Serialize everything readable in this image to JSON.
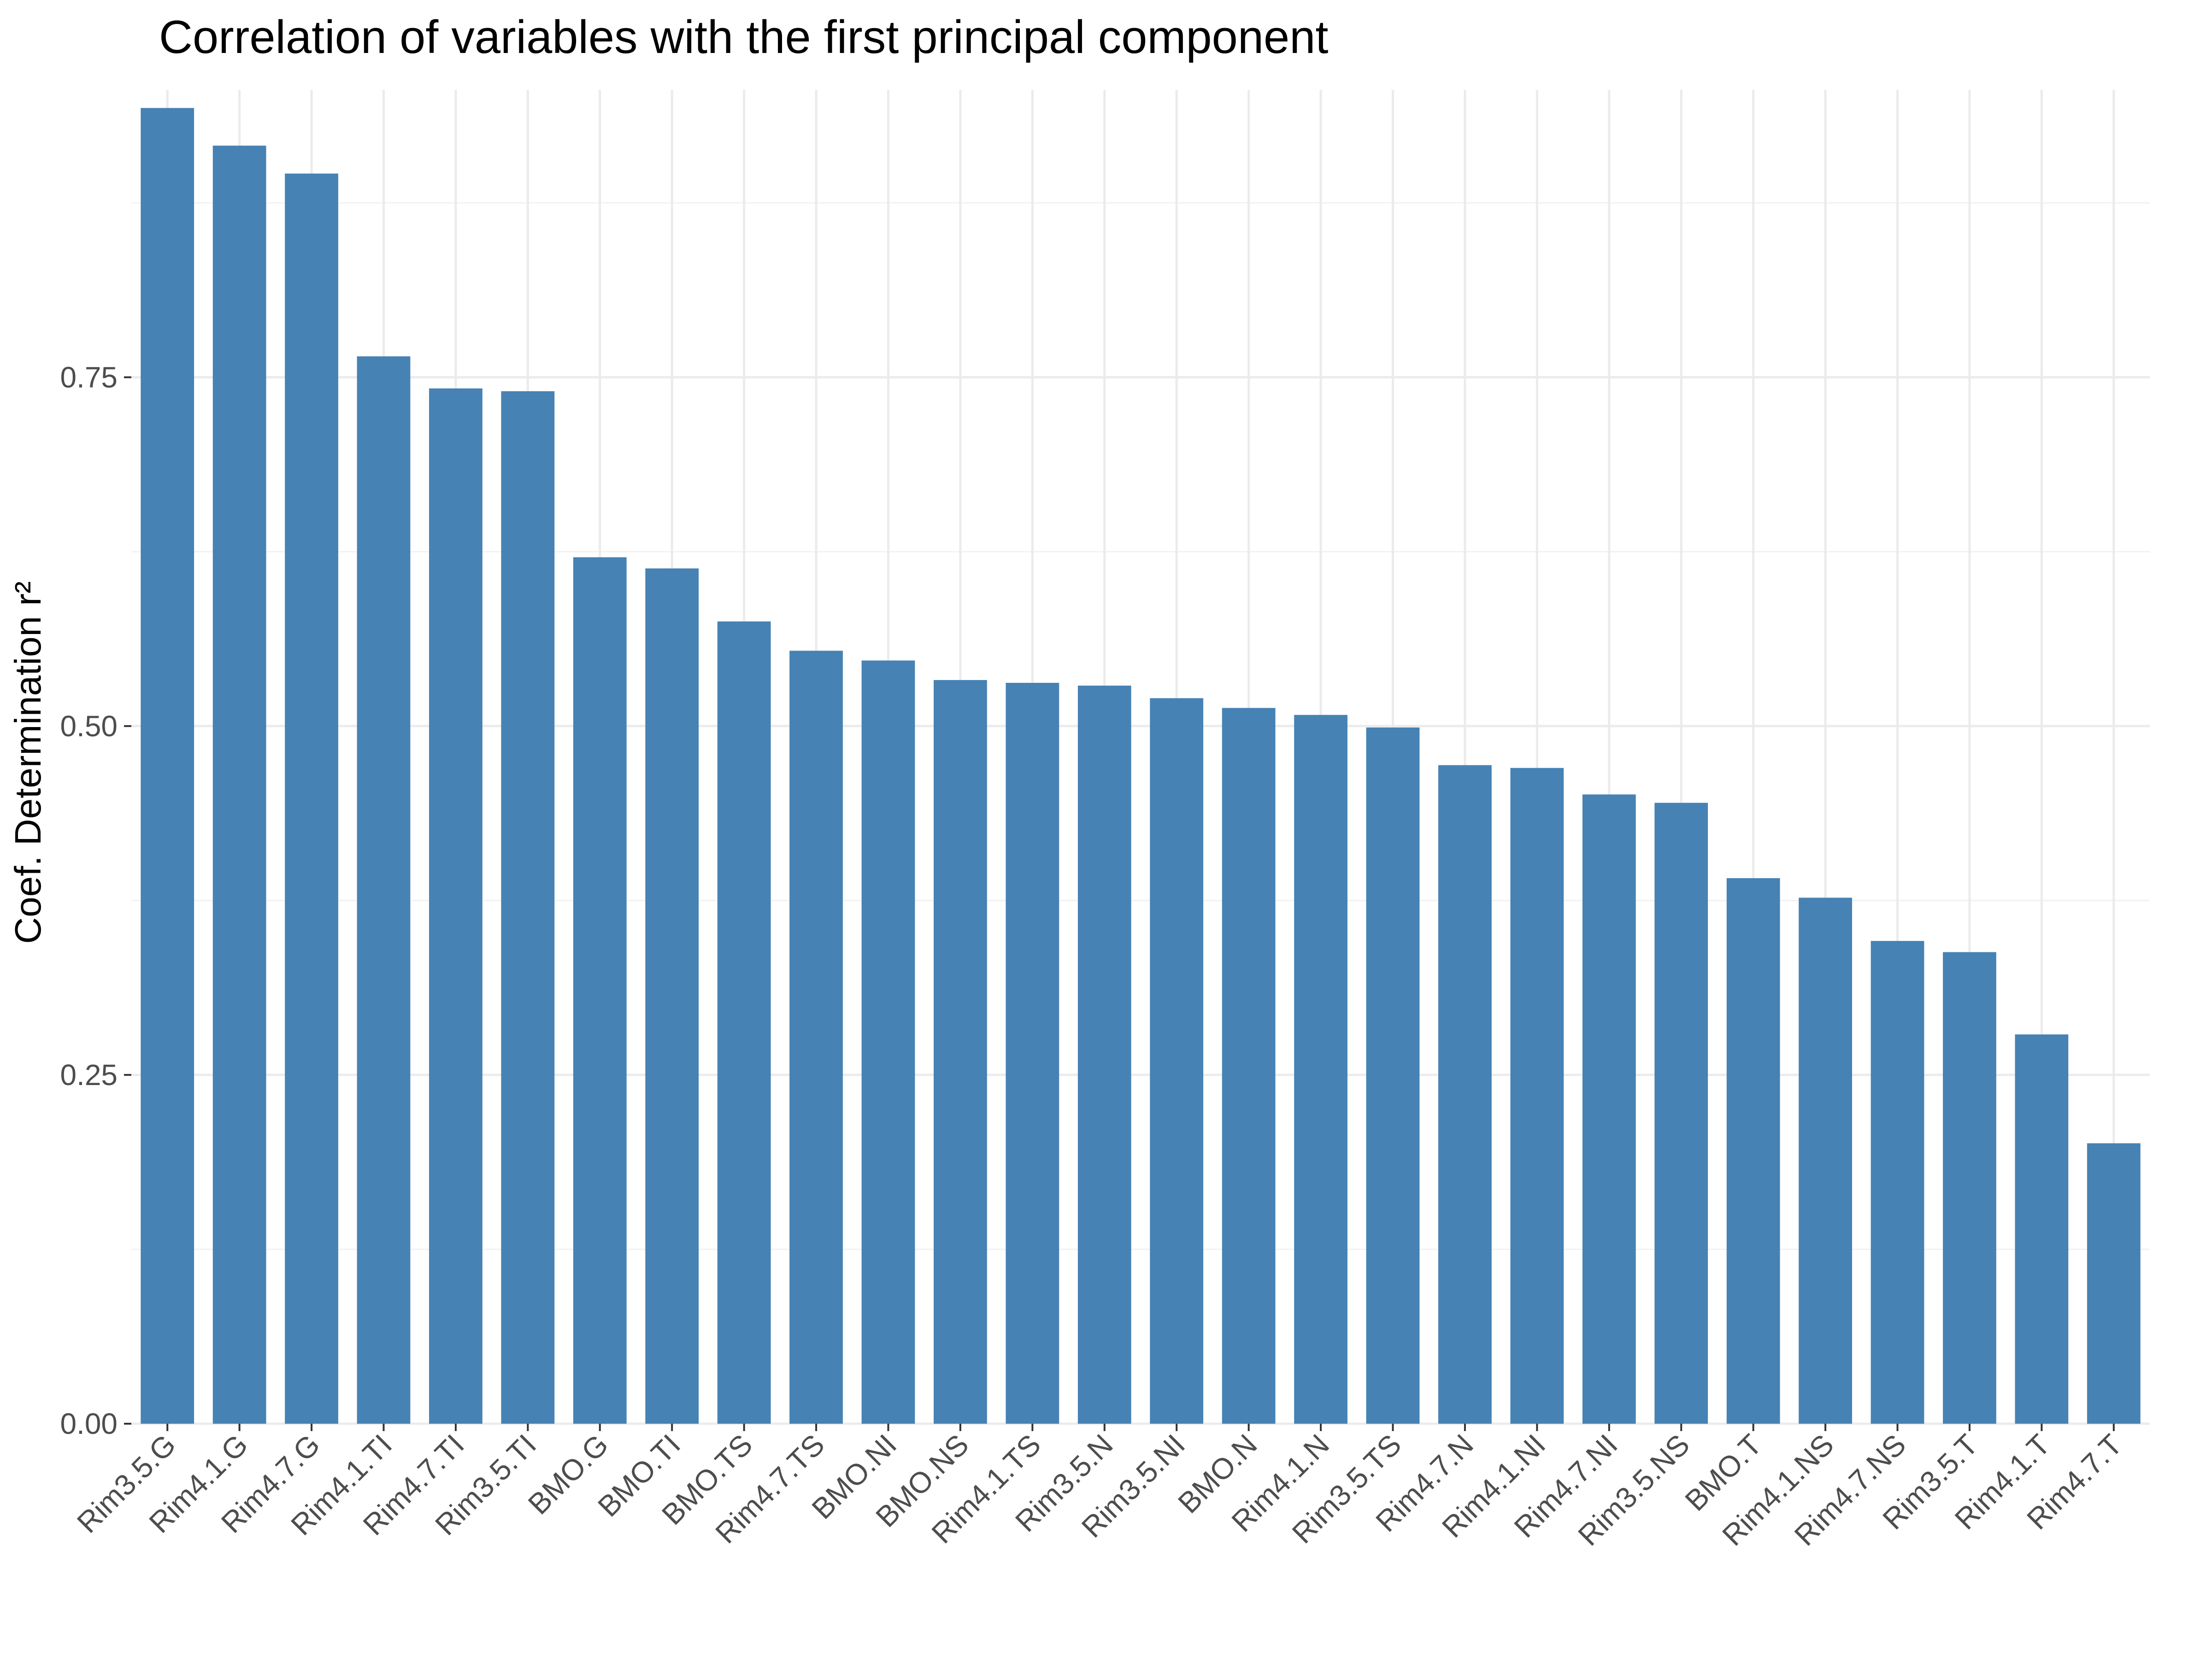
{
  "chart_data": {
    "type": "bar",
    "title": "Correlation of variables with the first principal component",
    "xlabel": "",
    "ylabel": "Coef. Determination r²",
    "ylim": [
      0,
      0.945
    ],
    "yticks": [
      "0.00",
      "0.25",
      "0.50",
      "0.75"
    ],
    "ytick_values": [
      0,
      0.25,
      0.5,
      0.75
    ],
    "grid": true,
    "bar_color": "#4682b4",
    "categories": [
      "Rim3.5.G",
      "Rim4.1.G",
      "Rim4.7.G",
      "Rim4.1.TI",
      "Rim4.7.TI",
      "Rim3.5.TI",
      "BMO.G",
      "BMO.TI",
      "BMO.TS",
      "Rim4.7.TS",
      "BMO.NI",
      "BMO.NS",
      "Rim4.1.TS",
      "Rim3.5.N",
      "Rim3.5.NI",
      "BMO.N",
      "Rim4.1.N",
      "Rim3.5.TS",
      "Rim4.7.N",
      "Rim4.1.NI",
      "Rim4.7.NI",
      "Rim3.5.NS",
      "BMO.T",
      "Rim4.1.NS",
      "Rim4.7.NS",
      "Rim3.5.T",
      "Rim4.1.T",
      "Rim4.7.T"
    ],
    "values": [
      0.943,
      0.916,
      0.896,
      0.765,
      0.742,
      0.74,
      0.621,
      0.613,
      0.575,
      0.554,
      0.547,
      0.533,
      0.531,
      0.529,
      0.52,
      0.513,
      0.508,
      0.499,
      0.472,
      0.47,
      0.451,
      0.445,
      0.391,
      0.377,
      0.346,
      0.338,
      0.279,
      0.201
    ]
  }
}
